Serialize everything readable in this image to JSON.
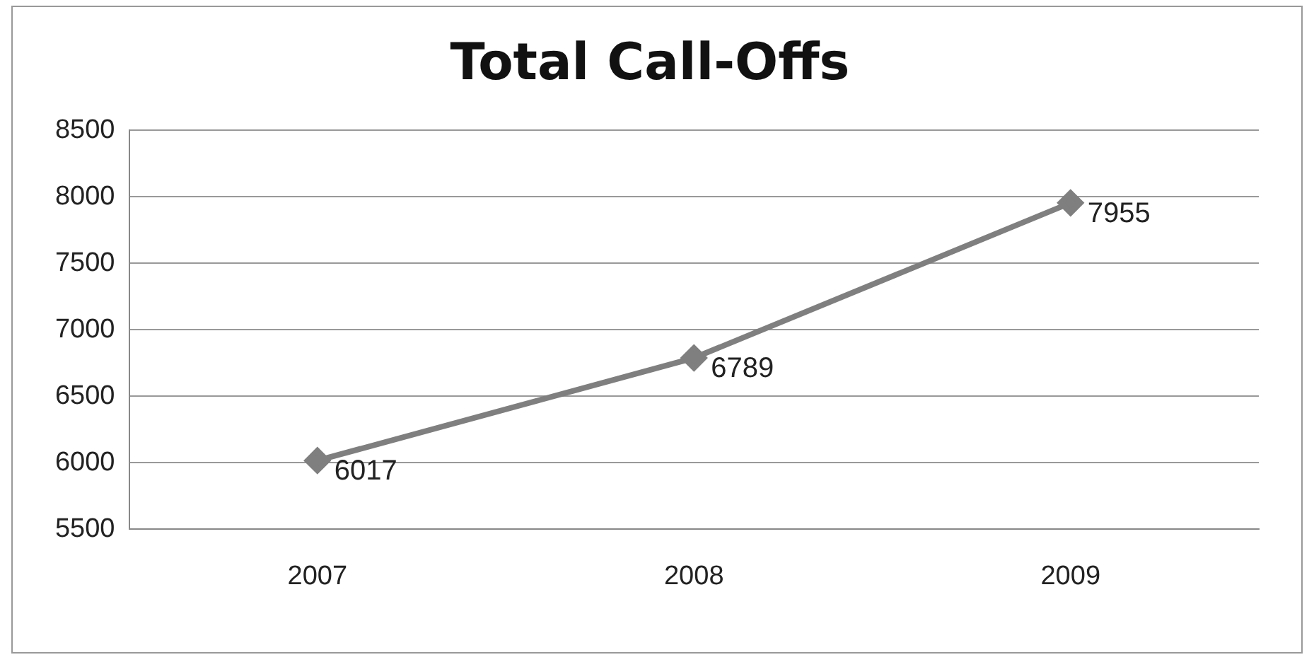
{
  "chart_data": {
    "type": "line",
    "title": "Total Call-Offs",
    "categories": [
      "2007",
      "2008",
      "2009"
    ],
    "series": [
      {
        "color": "#7f7f7f",
        "values": [
          6017,
          6789,
          7955
        ]
      }
    ],
    "ylim": [
      5500,
      8500
    ],
    "yticks": [
      5500,
      6000,
      6500,
      7000,
      7500,
      8000,
      8500
    ],
    "grid": "y",
    "legend": false,
    "marker": "diamond",
    "line_style": "solid",
    "data_labels": true
  }
}
